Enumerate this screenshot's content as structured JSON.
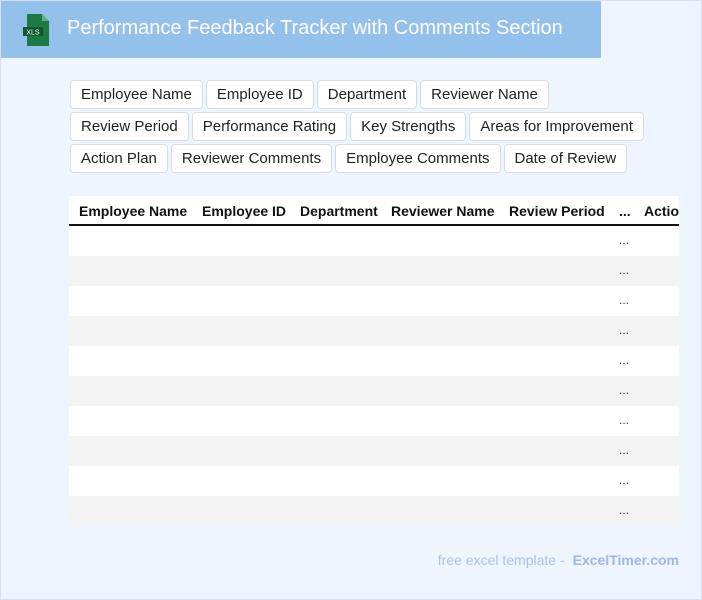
{
  "header": {
    "title": "Performance Feedback Tracker with Comments Section",
    "icon": "xls-file-icon",
    "icon_label": "XLS"
  },
  "fields": [
    "Employee Name",
    "Employee ID",
    "Department",
    "Reviewer Name",
    "Review Period",
    "Performance Rating",
    "Key Strengths",
    "Areas for Improvement",
    "Action Plan",
    "Reviewer Comments",
    "Employee Comments",
    "Date of Review"
  ],
  "table": {
    "columns": [
      "Employee Name",
      "Employee ID",
      "Department",
      "Reviewer Name",
      "Review Period",
      "...",
      "Actio"
    ],
    "row_placeholder": "...",
    "row_count": 10
  },
  "footer": {
    "text": "free excel template -",
    "brand": "ExcelTimer.com"
  },
  "colors": {
    "header_bg": "#93c1ec",
    "page_bg": "#eef5fe",
    "icon_green": "#1d7a45"
  }
}
